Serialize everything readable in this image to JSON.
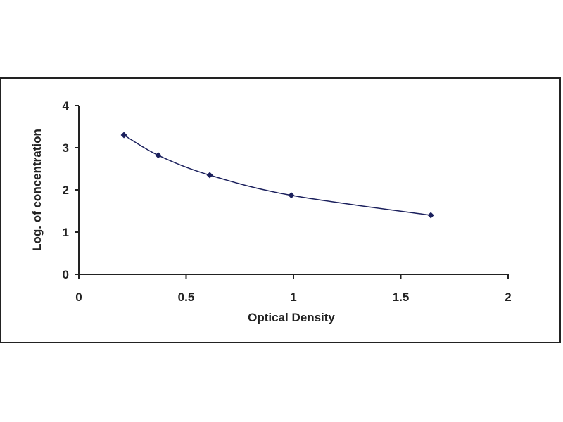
{
  "chart_data": {
    "type": "scatter",
    "title": "",
    "xlabel": "Optical Density",
    "ylabel": "Log. of concentration",
    "xlim": [
      0,
      2
    ],
    "ylim": [
      0,
      4
    ],
    "x_ticks": [
      "0",
      "0.5",
      "1",
      "1.5",
      "2"
    ],
    "y_ticks": [
      "0",
      "1",
      "2",
      "3",
      "4"
    ],
    "grid": false,
    "legend": "none",
    "line": "smooth",
    "colors": {
      "line": "#1a1f5c",
      "marker": "#1a1f5c",
      "axis": "#222222"
    },
    "series": [
      {
        "x": [
          0.21,
          0.37,
          0.61,
          0.99,
          1.64
        ],
        "y": [
          3.3,
          2.82,
          2.35,
          1.87,
          1.4
        ]
      }
    ]
  }
}
